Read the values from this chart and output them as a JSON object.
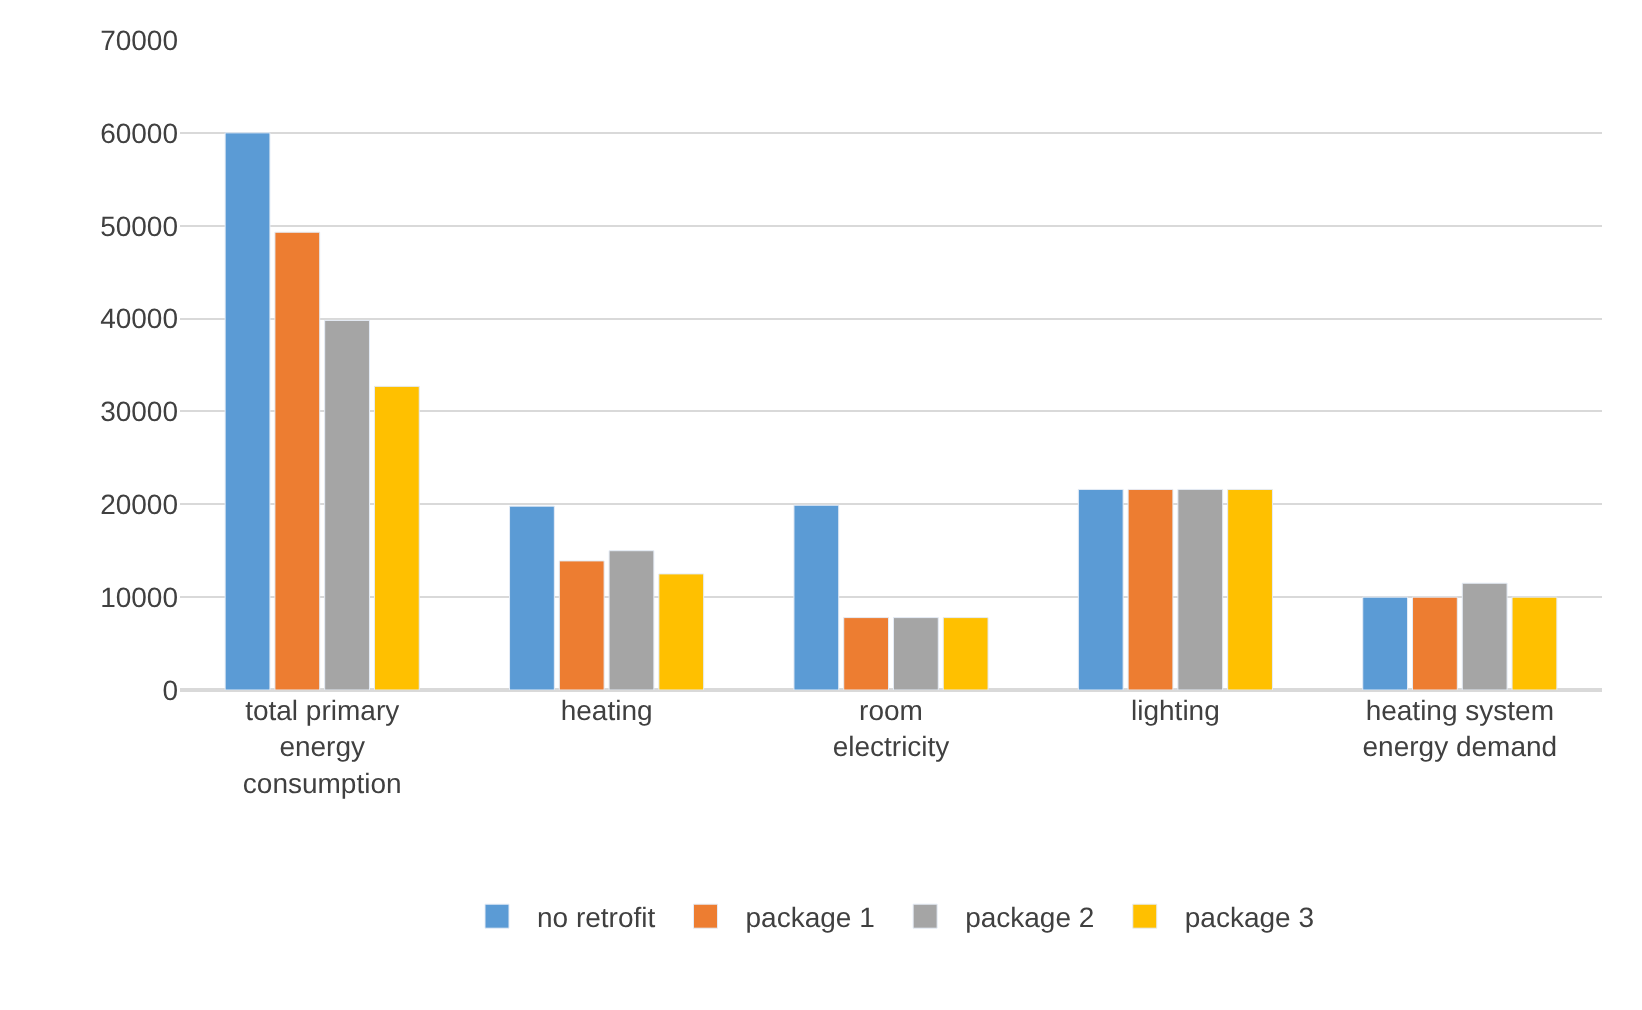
{
  "chart_data": {
    "type": "bar",
    "categories": [
      "total primary energy consumption",
      "heating",
      "room electricity",
      "lighting",
      "heating system energy demand"
    ],
    "series": [
      {
        "name": "no retrofit",
        "color": "#5b9bd5",
        "values": [
          60000,
          19800,
          19900,
          21600,
          10000
        ]
      },
      {
        "name": "package 1",
        "color": "#ed7d31",
        "values": [
          49300,
          13900,
          7800,
          21600,
          10000
        ]
      },
      {
        "name": "package 2",
        "color": "#a5a5a5",
        "values": [
          39800,
          15000,
          7800,
          21600,
          11500
        ]
      },
      {
        "name": "package 3",
        "color": "#ffc000",
        "values": [
          32700,
          12500,
          7800,
          21600,
          10000
        ]
      }
    ],
    "ylim": [
      0,
      70000
    ],
    "yticks": [
      0,
      10000,
      20000,
      30000,
      40000,
      50000,
      60000,
      70000
    ],
    "grid": "y",
    "legend": "bottom"
  }
}
